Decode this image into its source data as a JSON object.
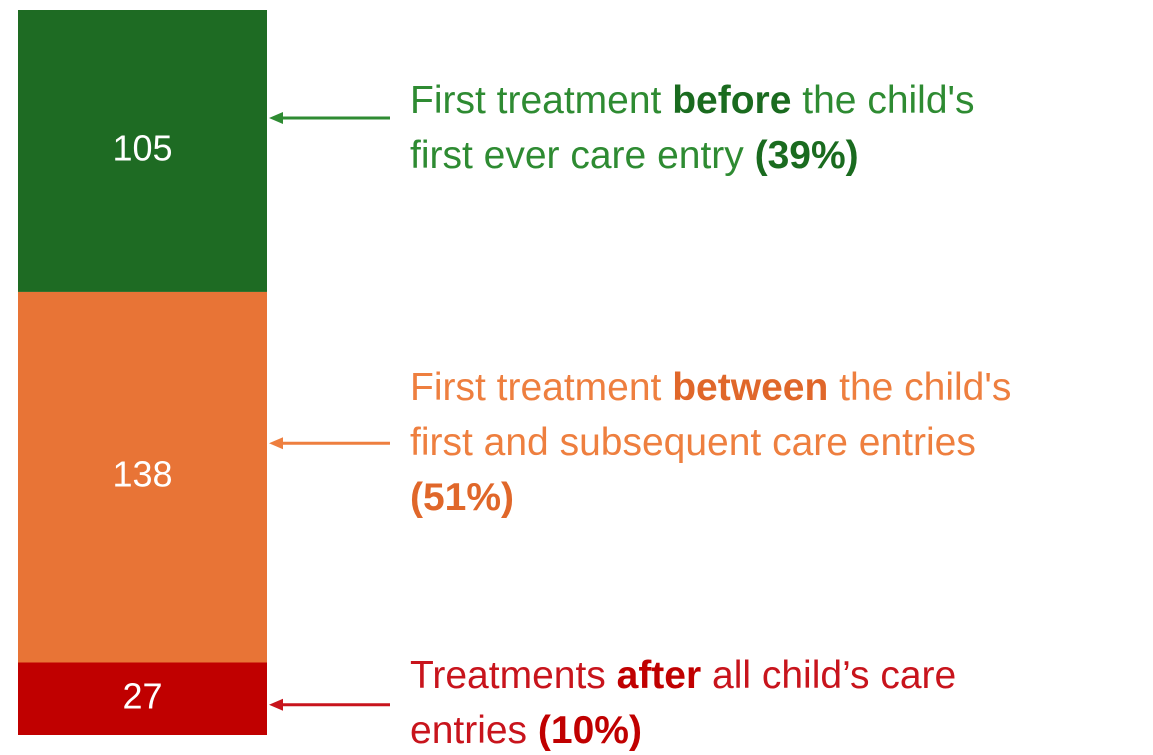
{
  "chart_data": {
    "type": "stacked-bar",
    "series": [
      {
        "color": "#1e6b23",
        "text_color": "#2e8b32",
        "emphasis_color": "#1a6b1f",
        "values": [
          105
        ]
      },
      {
        "color": "#e87436",
        "text_color": "#ee7f3f",
        "emphasis_color": "#e0672a",
        "values": [
          138
        ]
      },
      {
        "color": "#c00000",
        "text_color": "#c8141c",
        "emphasis_color": "#c00000",
        "values": [
          27
        ]
      }
    ],
    "annotations": [
      {
        "lines": [
          [
            {
              "text": "First treatment "
            },
            {
              "text": "before",
              "bold": true
            },
            {
              "text": " the child's"
            }
          ],
          [
            {
              "text": "first ever care entry "
            },
            {
              "text": "(39%)",
              "bold": true
            }
          ]
        ]
      },
      {
        "lines": [
          [
            {
              "text": "First treatment "
            },
            {
              "text": "between",
              "bold": true
            },
            {
              "text": " the child's"
            }
          ],
          [
            {
              "text": "first and subsequent care entries"
            }
          ],
          [
            {
              "text": "(51%)",
              "bold": true
            }
          ]
        ]
      },
      {
        "lines": [
          [
            {
              "text": "Treatments "
            },
            {
              "text": "after",
              "bold": true
            },
            {
              "text": " all child’s care"
            }
          ],
          [
            {
              "text": "entries "
            },
            {
              "text": "(10%)",
              "bold": true
            }
          ]
        ]
      }
    ]
  }
}
